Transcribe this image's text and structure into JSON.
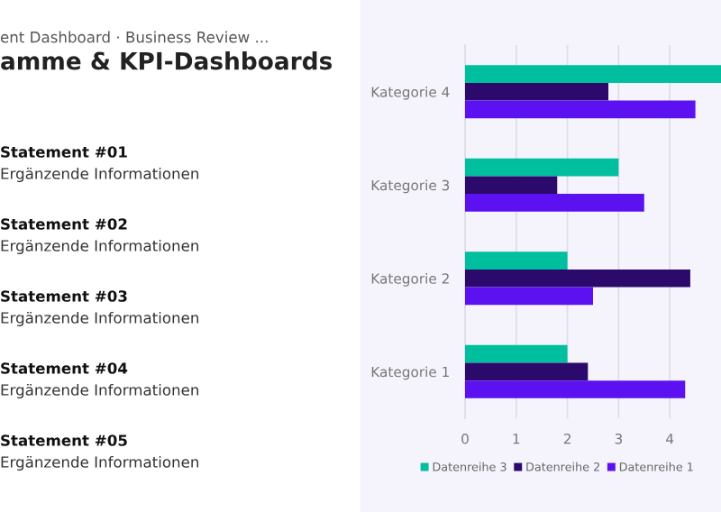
{
  "chart_data": {
    "type": "bar",
    "orientation": "horizontal",
    "title": "amme & KPI-Dashboards",
    "subtitle": "ent Dashboard · Business Review ...",
    "categories": [
      "Kategorie 4",
      "Kategorie 3",
      "Kategorie 2",
      "Kategorie 1"
    ],
    "series": [
      {
        "name": "Datenreihe 3",
        "color": "#00bf9f",
        "values": [
          5,
          3,
          2,
          2
        ]
      },
      {
        "name": "Datenreihe 2",
        "color": "#2b0a6b",
        "values": [
          2.8,
          1.8,
          4.4,
          2.4
        ]
      },
      {
        "name": "Datenreihe 1",
        "color": "#5c12f0",
        "values": [
          4.5,
          3.5,
          2.5,
          4.3
        ]
      }
    ],
    "xlim": [
      0,
      5
    ],
    "xticks": [
      0,
      1,
      2,
      3,
      4
    ],
    "grid": "x",
    "legend": "bottom",
    "annotations": [
      "Statement #01",
      "Ergänzende Informationen",
      "Statement #02",
      "Ergänzende Informationen",
      "Statement #03",
      "Ergänzende Informationen",
      "Statement #04",
      "Ergänzende Informationen",
      "Statement #05",
      "Ergänzende Informationen"
    ]
  }
}
